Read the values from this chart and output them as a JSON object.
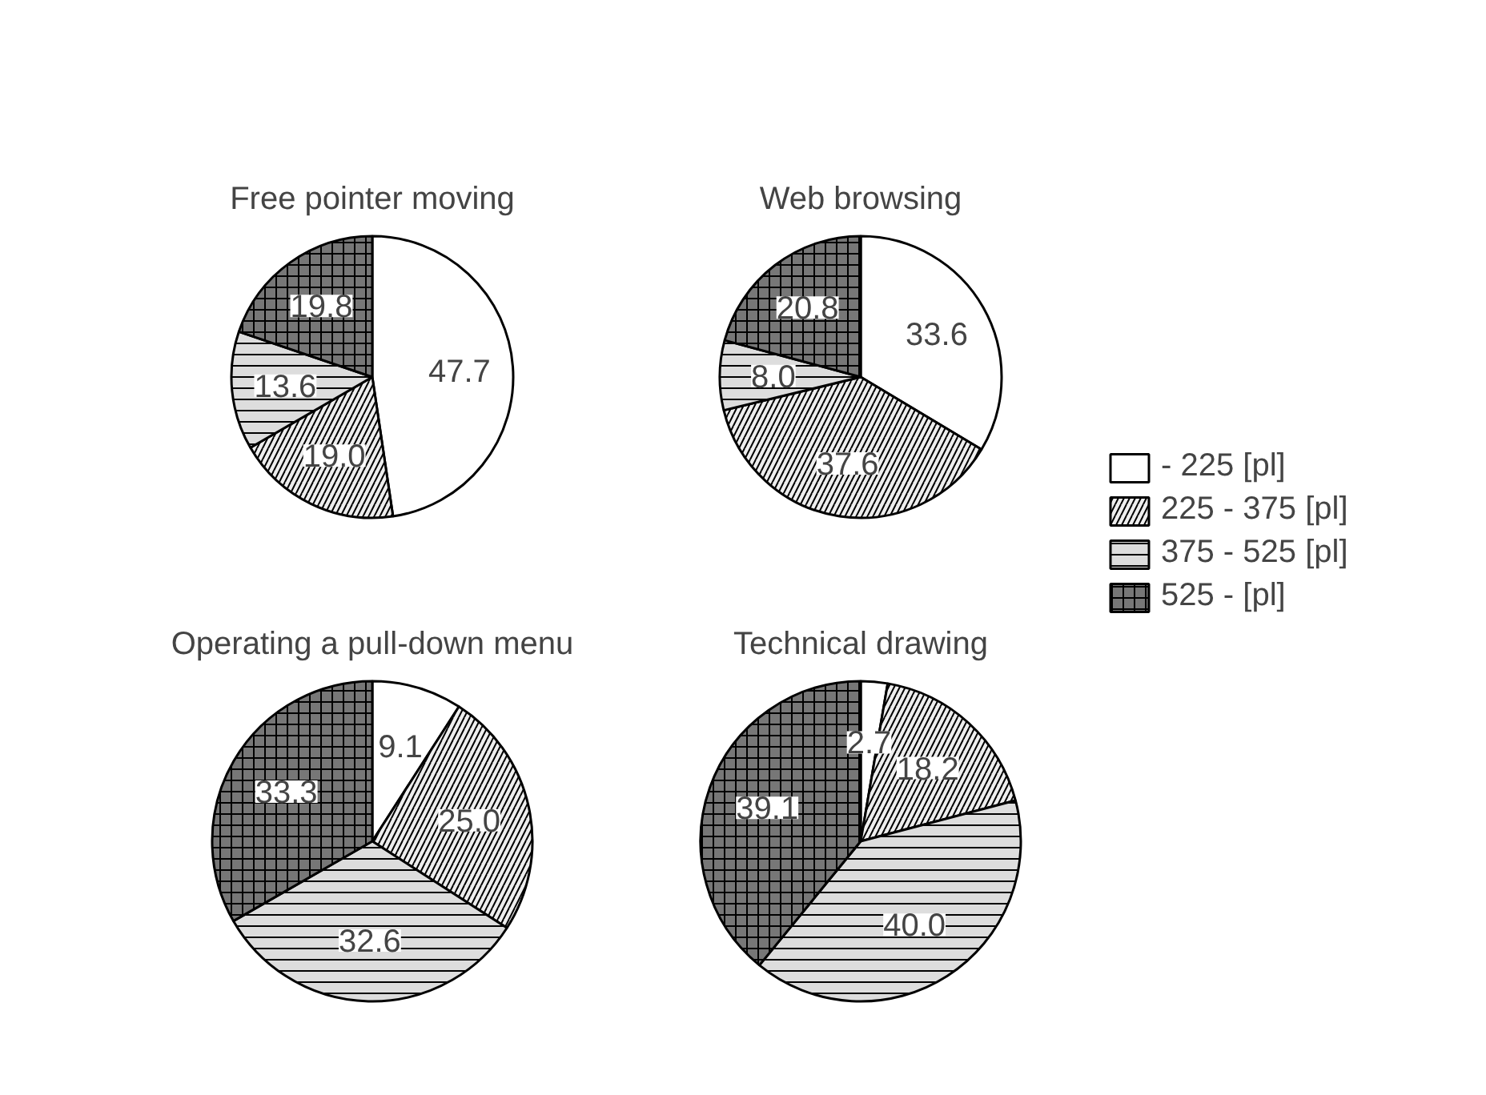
{
  "chart_data": [
    {
      "type": "pie",
      "title": "Free pointer moving",
      "categories": [
        "- 225 [pl]",
        "225 - 375 [pl]",
        "375 - 525 [pl]",
        "525 - [pl]"
      ],
      "values": [
        47.7,
        19.0,
        13.6,
        19.8
      ],
      "value_labels": [
        "47.7",
        "19.0",
        "13.6",
        "19.8"
      ],
      "colors": [
        "#ffffff",
        "#eeeeee",
        "#dddddd",
        "#777777"
      ],
      "legend": "right"
    },
    {
      "type": "pie",
      "title": "Web browsing",
      "categories": [
        null,
        null,
        null,
        null
      ],
      "values": [
        33.6,
        37.6,
        8.0,
        20.8
      ],
      "value_labels": [
        "33.6",
        "37.6",
        "8.0",
        "20.8"
      ],
      "colors": [
        "#ffffff",
        "#eeeeee",
        "#dddddd",
        "#777777"
      ]
    },
    {
      "type": "pie",
      "title": "Operating a pull-down menu",
      "categories": [
        null,
        null,
        null,
        null
      ],
      "values": [
        9.1,
        25.0,
        32.6,
        33.3
      ],
      "value_labels": [
        "9.1",
        "25.0",
        "32.6",
        "33.3"
      ],
      "colors": [
        "#ffffff",
        "#eeeeee",
        "#dddddd",
        "#777777"
      ]
    },
    {
      "type": "pie",
      "title": "Technical drawing",
      "categories": [
        null,
        null,
        null,
        null
      ],
      "values": [
        2.7,
        18.2,
        40.0,
        39.1
      ],
      "value_labels": [
        "2.7",
        "18.2",
        "40.0",
        "39.1"
      ],
      "colors": [
        "#ffffff",
        "#eeeeee",
        "#dddddd",
        "#777777"
      ]
    }
  ]
}
